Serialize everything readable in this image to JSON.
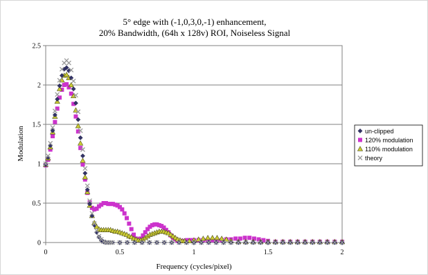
{
  "chart_data": {
    "type": "scatter",
    "title_lines": [
      "5° edge with (-1,0,3,0,-1) enhancement,",
      "20% Bandwidth, (64h x 128v) ROI, Noiseless Signal"
    ],
    "xlabel": "Frequency (cycles/pixel)",
    "ylabel": "Modulation",
    "xlim": [
      0,
      2
    ],
    "ylim": [
      0,
      2.5
    ],
    "xticks": [
      "0",
      "0.5",
      "1",
      "1.5",
      "2"
    ],
    "yticks": [
      "0",
      "0.5",
      "1",
      "1.5",
      "2",
      "2.5"
    ],
    "grid": "horizontal",
    "legend_position": "right",
    "series": [
      {
        "name": "un-clipped",
        "marker": "diamond",
        "color": "#333366",
        "points": [
          [
            0,
            0.99
          ],
          [
            0.0156,
            1.08
          ],
          [
            0.0313,
            1.23
          ],
          [
            0.0469,
            1.42
          ],
          [
            0.0625,
            1.62
          ],
          [
            0.0781,
            1.82
          ],
          [
            0.0938,
            1.99
          ],
          [
            0.1094,
            2.12
          ],
          [
            0.125,
            2.2
          ],
          [
            0.1406,
            2.22
          ],
          [
            0.1563,
            2.18
          ],
          [
            0.1719,
            2.09
          ],
          [
            0.1875,
            1.95
          ],
          [
            0.2031,
            1.77
          ],
          [
            0.2188,
            1.56
          ],
          [
            0.2344,
            1.33
          ],
          [
            0.25,
            1.1
          ],
          [
            0.2656,
            0.88
          ],
          [
            0.2813,
            0.67
          ],
          [
            0.2969,
            0.49
          ],
          [
            0.3125,
            0.34
          ],
          [
            0.3281,
            0.22
          ],
          [
            0.3438,
            0.13
          ],
          [
            0.3594,
            0.07
          ],
          [
            0.375,
            0.03
          ],
          [
            0.3906,
            0.01
          ],
          [
            0.4063,
            0.0
          ],
          [
            0.4219,
            0.0
          ],
          [
            0.4375,
            0.0
          ],
          [
            0.45,
            0.0
          ],
          [
            0.5,
            0.0
          ],
          [
            0.55,
            0.0
          ],
          [
            0.6,
            0.0
          ],
          [
            0.65,
            0.0
          ],
          [
            0.7,
            0.0
          ],
          [
            0.75,
            0.0
          ],
          [
            0.8,
            0.0
          ],
          [
            0.85,
            0.0
          ],
          [
            0.9,
            0.0
          ],
          [
            0.95,
            0.0
          ],
          [
            1.0,
            0.0
          ],
          [
            1.05,
            0.0
          ],
          [
            1.1,
            0.0
          ],
          [
            1.15,
            0.0
          ],
          [
            1.2,
            0.0
          ],
          [
            1.25,
            0.0
          ],
          [
            1.3,
            0.0
          ],
          [
            1.35,
            0.0
          ],
          [
            1.4,
            0.0
          ],
          [
            1.45,
            0.0
          ],
          [
            1.5,
            0.0
          ],
          [
            1.55,
            0.0
          ],
          [
            1.6,
            0.0
          ],
          [
            1.65,
            0.0
          ],
          [
            1.7,
            0.0
          ],
          [
            1.75,
            0.0
          ],
          [
            1.8,
            0.0
          ],
          [
            1.85,
            0.0
          ],
          [
            1.9,
            0.0
          ],
          [
            1.95,
            0.0
          ],
          [
            2.0,
            0.0
          ]
        ]
      },
      {
        "name": "120% modulation",
        "marker": "square",
        "color": "#cc33cc",
        "points": [
          [
            0,
            0.98
          ],
          [
            0.0156,
            1.05
          ],
          [
            0.0313,
            1.18
          ],
          [
            0.0469,
            1.35
          ],
          [
            0.0625,
            1.53
          ],
          [
            0.0781,
            1.7
          ],
          [
            0.0938,
            1.84
          ],
          [
            0.1094,
            1.94
          ],
          [
            0.125,
            2.0
          ],
          [
            0.1406,
            2.01
          ],
          [
            0.1563,
            1.97
          ],
          [
            0.1719,
            1.89
          ],
          [
            0.1875,
            1.76
          ],
          [
            0.2031,
            1.6
          ],
          [
            0.2188,
            1.41
          ],
          [
            0.2344,
            1.2
          ],
          [
            0.25,
            0.99
          ],
          [
            0.2656,
            0.8
          ],
          [
            0.2813,
            0.63
          ],
          [
            0.2969,
            0.51
          ],
          [
            0.3125,
            0.44
          ],
          [
            0.3281,
            0.42
          ],
          [
            0.3438,
            0.43
          ],
          [
            0.3594,
            0.46
          ],
          [
            0.375,
            0.48
          ],
          [
            0.3906,
            0.5
          ],
          [
            0.4063,
            0.5
          ],
          [
            0.4219,
            0.49
          ],
          [
            0.4375,
            0.49
          ],
          [
            0.4531,
            0.49
          ],
          [
            0.4688,
            0.48
          ],
          [
            0.4844,
            0.47
          ],
          [
            0.5,
            0.45
          ],
          [
            0.5156,
            0.42
          ],
          [
            0.5313,
            0.37
          ],
          [
            0.5469,
            0.31
          ],
          [
            0.5625,
            0.24
          ],
          [
            0.5781,
            0.17
          ],
          [
            0.5938,
            0.1
          ],
          [
            0.6094,
            0.05
          ],
          [
            0.625,
            0.03
          ],
          [
            0.6406,
            0.05
          ],
          [
            0.6563,
            0.09
          ],
          [
            0.6719,
            0.13
          ],
          [
            0.6875,
            0.17
          ],
          [
            0.7031,
            0.2
          ],
          [
            0.7188,
            0.22
          ],
          [
            0.7344,
            0.23
          ],
          [
            0.75,
            0.23
          ],
          [
            0.7656,
            0.22
          ],
          [
            0.7813,
            0.21
          ],
          [
            0.7969,
            0.19
          ],
          [
            0.8125,
            0.16
          ],
          [
            0.8281,
            0.13
          ],
          [
            0.8438,
            0.09
          ],
          [
            0.8594,
            0.06
          ],
          [
            0.875,
            0.04
          ],
          [
            0.8906,
            0.02
          ],
          [
            0.9063,
            0.02
          ],
          [
            0.9219,
            0.02
          ],
          [
            0.9375,
            0.02
          ],
          [
            0.9531,
            0.03
          ],
          [
            0.9688,
            0.03
          ],
          [
            0.9844,
            0.03
          ],
          [
            1.0,
            0.03
          ],
          [
            1.0313,
            0.03
          ],
          [
            1.0625,
            0.03
          ],
          [
            1.0938,
            0.03
          ],
          [
            1.125,
            0.03
          ],
          [
            1.1563,
            0.03
          ],
          [
            1.1875,
            0.03
          ],
          [
            1.2188,
            0.04
          ],
          [
            1.25,
            0.04
          ],
          [
            1.2813,
            0.05
          ],
          [
            1.3125,
            0.05
          ],
          [
            1.3438,
            0.06
          ],
          [
            1.375,
            0.06
          ],
          [
            1.4063,
            0.05
          ],
          [
            1.4375,
            0.04
          ],
          [
            1.4688,
            0.03
          ],
          [
            1.5,
            0.02
          ],
          [
            1.55,
            0.01
          ],
          [
            1.6,
            0.01
          ],
          [
            1.65,
            0.01
          ],
          [
            1.7,
            0.01
          ],
          [
            1.75,
            0.01
          ],
          [
            1.8,
            0.01
          ],
          [
            1.85,
            0.01
          ],
          [
            1.9,
            0.01
          ],
          [
            1.95,
            0.01
          ],
          [
            2.0,
            0.01
          ]
        ]
      },
      {
        "name": "110% modulation",
        "marker": "triangle",
        "color": "#cccc33",
        "points": [
          [
            0,
            0.99
          ],
          [
            0.0156,
            1.07
          ],
          [
            0.0313,
            1.21
          ],
          [
            0.0469,
            1.4
          ],
          [
            0.0625,
            1.6
          ],
          [
            0.0781,
            1.79
          ],
          [
            0.0938,
            1.95
          ],
          [
            0.1094,
            2.06
          ],
          [
            0.125,
            2.12
          ],
          [
            0.1406,
            2.13
          ],
          [
            0.1563,
            2.09
          ],
          [
            0.1719,
            2.0
          ],
          [
            0.1875,
            1.86
          ],
          [
            0.2031,
            1.68
          ],
          [
            0.2188,
            1.48
          ],
          [
            0.2344,
            1.26
          ],
          [
            0.25,
            1.04
          ],
          [
            0.2656,
            0.83
          ],
          [
            0.2813,
            0.64
          ],
          [
            0.2969,
            0.47
          ],
          [
            0.3125,
            0.34
          ],
          [
            0.3281,
            0.25
          ],
          [
            0.3438,
            0.2
          ],
          [
            0.3594,
            0.17
          ],
          [
            0.375,
            0.16
          ],
          [
            0.3906,
            0.16
          ],
          [
            0.4063,
            0.16
          ],
          [
            0.4219,
            0.16
          ],
          [
            0.4375,
            0.16
          ],
          [
            0.4531,
            0.15
          ],
          [
            0.4688,
            0.14
          ],
          [
            0.4844,
            0.14
          ],
          [
            0.5,
            0.13
          ],
          [
            0.5156,
            0.12
          ],
          [
            0.5313,
            0.11
          ],
          [
            0.5469,
            0.1
          ],
          [
            0.5625,
            0.08
          ],
          [
            0.5781,
            0.07
          ],
          [
            0.5938,
            0.05
          ],
          [
            0.6094,
            0.04
          ],
          [
            0.625,
            0.03
          ],
          [
            0.6406,
            0.03
          ],
          [
            0.6563,
            0.04
          ],
          [
            0.6719,
            0.06
          ],
          [
            0.6875,
            0.08
          ],
          [
            0.7031,
            0.1
          ],
          [
            0.7188,
            0.11
          ],
          [
            0.7344,
            0.12
          ],
          [
            0.75,
            0.13
          ],
          [
            0.7656,
            0.14
          ],
          [
            0.7813,
            0.14
          ],
          [
            0.7969,
            0.14
          ],
          [
            0.8125,
            0.13
          ],
          [
            0.8281,
            0.12
          ],
          [
            0.8438,
            0.1
          ],
          [
            0.8594,
            0.08
          ],
          [
            0.875,
            0.06
          ],
          [
            0.8906,
            0.04
          ],
          [
            0.9063,
            0.03
          ],
          [
            0.9219,
            0.02
          ],
          [
            0.9375,
            0.02
          ],
          [
            0.9688,
            0.02
          ],
          [
            1.0,
            0.03
          ],
          [
            1.0313,
            0.04
          ],
          [
            1.0625,
            0.05
          ],
          [
            1.0938,
            0.06
          ],
          [
            1.125,
            0.06
          ],
          [
            1.1563,
            0.06
          ],
          [
            1.1875,
            0.05
          ],
          [
            1.2188,
            0.04
          ],
          [
            1.25,
            0.02
          ],
          [
            1.3,
            0.01
          ],
          [
            1.35,
            0.01
          ],
          [
            1.4,
            0.01
          ],
          [
            1.45,
            0.01
          ],
          [
            1.5,
            0.01
          ],
          [
            1.55,
            0.01
          ],
          [
            1.6,
            0.01
          ],
          [
            1.65,
            0.01
          ],
          [
            1.7,
            0.01
          ],
          [
            1.75,
            0.01
          ],
          [
            1.8,
            0.01
          ],
          [
            1.85,
            0.01
          ],
          [
            1.9,
            0.01
          ],
          [
            1.95,
            0.01
          ],
          [
            2.0,
            0.01
          ]
        ]
      },
      {
        "name": "theory",
        "marker": "x",
        "color": "#999999",
        "points": [
          [
            0,
            1.0
          ],
          [
            0.0156,
            1.1
          ],
          [
            0.0313,
            1.26
          ],
          [
            0.0469,
            1.46
          ],
          [
            0.0625,
            1.67
          ],
          [
            0.0781,
            1.88
          ],
          [
            0.0938,
            2.06
          ],
          [
            0.1094,
            2.2
          ],
          [
            0.125,
            2.28
          ],
          [
            0.1406,
            2.31
          ],
          [
            0.1563,
            2.28
          ],
          [
            0.1719,
            2.19
          ],
          [
            0.1875,
            2.05
          ],
          [
            0.2031,
            1.87
          ],
          [
            0.2188,
            1.66
          ],
          [
            0.2344,
            1.42
          ],
          [
            0.25,
            1.18
          ],
          [
            0.2656,
            0.94
          ],
          [
            0.2813,
            0.72
          ],
          [
            0.2969,
            0.53
          ],
          [
            0.3125,
            0.37
          ],
          [
            0.3281,
            0.24
          ],
          [
            0.3438,
            0.15
          ],
          [
            0.3594,
            0.08
          ],
          [
            0.375,
            0.04
          ],
          [
            0.3906,
            0.01
          ],
          [
            0.4063,
            0.0
          ],
          [
            0.4219,
            0.0
          ],
          [
            0.4375,
            0.0
          ],
          [
            0.45,
            0.0
          ],
          [
            0.5,
            0.0
          ],
          [
            0.55,
            0.0
          ],
          [
            0.6,
            0.0
          ],
          [
            0.65,
            0.0
          ],
          [
            0.7,
            0.0
          ],
          [
            0.75,
            0.0
          ],
          [
            0.8,
            0.0
          ],
          [
            0.85,
            0.0
          ],
          [
            0.9,
            0.0
          ],
          [
            0.95,
            0.0
          ],
          [
            1.0,
            0.0
          ],
          [
            1.05,
            0.0
          ],
          [
            1.1,
            0.0
          ],
          [
            1.15,
            0.0
          ],
          [
            1.2,
            0.0
          ],
          [
            1.25,
            0.0
          ],
          [
            1.3,
            0.0
          ],
          [
            1.35,
            0.0
          ],
          [
            1.4,
            0.0
          ],
          [
            1.45,
            0.0
          ],
          [
            1.5,
            0.0
          ],
          [
            1.55,
            0.0
          ],
          [
            1.6,
            0.0
          ],
          [
            1.65,
            0.0
          ],
          [
            1.7,
            0.0
          ],
          [
            1.75,
            0.0
          ],
          [
            1.8,
            0.0
          ],
          [
            1.85,
            0.0
          ],
          [
            1.9,
            0.0
          ],
          [
            1.95,
            0.0
          ],
          [
            2.0,
            0.0
          ]
        ]
      }
    ]
  }
}
